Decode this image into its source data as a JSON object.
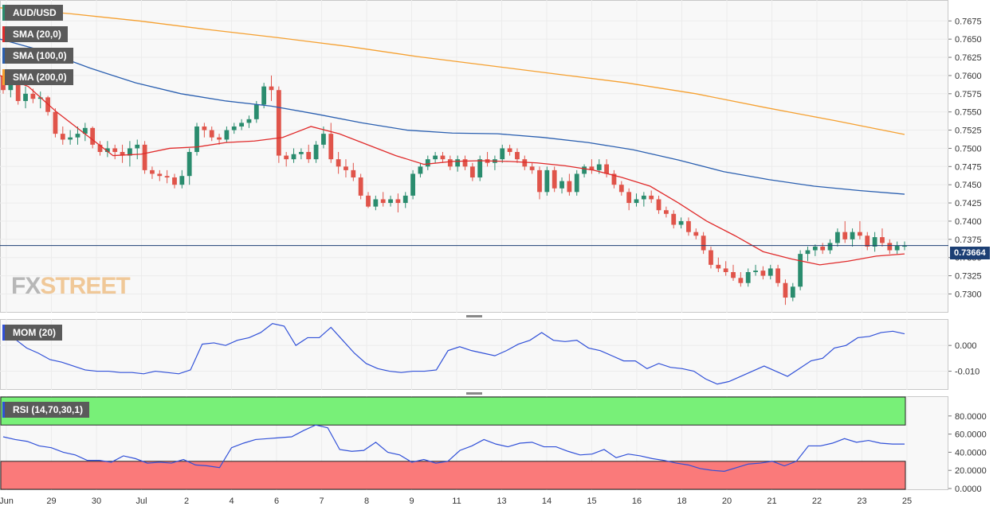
{
  "symbol": "AUD/USD",
  "indicators": {
    "sma20": "SMA (20,0)",
    "sma100": "SMA (100,0)",
    "sma200": "SMA (200,0)",
    "mom": "MOM (20)",
    "rsi": "RSI (14,70,30,1)"
  },
  "current_price": "0.73664",
  "logo": {
    "fx": "FX",
    "street": "STREET"
  },
  "colors": {
    "up": "#2a8c6e",
    "down": "#e0544a",
    "sma20": "#e02a2a",
    "sma100": "#2a5fb0",
    "sma200": "#f5a030",
    "mom": "#3050d8",
    "rsi": "#3050d8",
    "overbought": "#78f078",
    "oversold": "#fa7a7a",
    "price_line": "#1c3f74"
  },
  "chart_data": [
    {
      "type": "candlestick",
      "title": "AUD/USD",
      "timeframe": "4h (approx.)",
      "x_tick_labels": [
        "Jun",
        "29",
        "30",
        "Jul",
        "2",
        "4",
        "6",
        "7",
        "8",
        "9",
        "11",
        "13",
        "14",
        "15",
        "16",
        "18",
        "20",
        "21",
        "22",
        "23",
        "25"
      ],
      "y_tick_labels": [
        "0.7300",
        "0.7325",
        "0.7350",
        "0.7375",
        "0.7400",
        "0.7425",
        "0.7450",
        "0.7475",
        "0.7500",
        "0.7525",
        "0.7550",
        "0.7575",
        "0.7600",
        "0.7625",
        "0.7650",
        "0.7675"
      ],
      "ylim": [
        0.7283,
        0.7695
      ],
      "candles": [
        [
          0.76,
          0.7603,
          0.7575,
          0.758
        ],
        [
          0.758,
          0.7598,
          0.757,
          0.7595
        ],
        [
          0.7595,
          0.76,
          0.756,
          0.7565
        ],
        [
          0.7565,
          0.7585,
          0.7555,
          0.7575
        ],
        [
          0.7575,
          0.7582,
          0.7562,
          0.7568
        ],
        [
          0.7568,
          0.7578,
          0.7555,
          0.757
        ],
        [
          0.757,
          0.7572,
          0.7545,
          0.755
        ],
        [
          0.755,
          0.7555,
          0.7515,
          0.752
        ],
        [
          0.752,
          0.753,
          0.7505,
          0.7512
        ],
        [
          0.7512,
          0.7525,
          0.7505,
          0.7515
        ],
        [
          0.7515,
          0.753,
          0.7505,
          0.752
        ],
        [
          0.752,
          0.7535,
          0.751,
          0.7528
        ],
        [
          0.7528,
          0.753,
          0.75,
          0.7505
        ],
        [
          0.7505,
          0.751,
          0.749,
          0.7495
        ],
        [
          0.7495,
          0.751,
          0.7488,
          0.75
        ],
        [
          0.75,
          0.7505,
          0.7485,
          0.7495
        ],
        [
          0.7495,
          0.7505,
          0.748,
          0.749
        ],
        [
          0.749,
          0.751,
          0.7475,
          0.75
        ],
        [
          0.75,
          0.7512,
          0.7485,
          0.7505
        ],
        [
          0.7505,
          0.751,
          0.7465,
          0.747
        ],
        [
          0.747,
          0.7475,
          0.7458,
          0.7465
        ],
        [
          0.7465,
          0.747,
          0.7455,
          0.7462
        ],
        [
          0.7462,
          0.747,
          0.7452,
          0.746
        ],
        [
          0.746,
          0.7465,
          0.7445,
          0.745
        ],
        [
          0.745,
          0.747,
          0.7445,
          0.7462
        ],
        [
          0.7462,
          0.75,
          0.745,
          0.7495
        ],
        [
          0.7495,
          0.7535,
          0.749,
          0.753
        ],
        [
          0.753,
          0.7535,
          0.7515,
          0.7525
        ],
        [
          0.7525,
          0.753,
          0.751,
          0.7515
        ],
        [
          0.7515,
          0.752,
          0.7505,
          0.7512
        ],
        [
          0.7512,
          0.753,
          0.7508,
          0.7525
        ],
        [
          0.7525,
          0.7535,
          0.752,
          0.753
        ],
        [
          0.753,
          0.754,
          0.7525,
          0.7535
        ],
        [
          0.7535,
          0.7545,
          0.7528,
          0.754
        ],
        [
          0.754,
          0.7565,
          0.7535,
          0.756
        ],
        [
          0.756,
          0.759,
          0.7555,
          0.7585
        ],
        [
          0.7585,
          0.76,
          0.7565,
          0.758
        ],
        [
          0.758,
          0.7585,
          0.748,
          0.749
        ],
        [
          0.749,
          0.7495,
          0.7475,
          0.7485
        ],
        [
          0.7485,
          0.75,
          0.748,
          0.7492
        ],
        [
          0.7492,
          0.75,
          0.7485,
          0.7495
        ],
        [
          0.7495,
          0.7505,
          0.748,
          0.7485
        ],
        [
          0.7485,
          0.751,
          0.748,
          0.7505
        ],
        [
          0.7505,
          0.753,
          0.75,
          0.752
        ],
        [
          0.752,
          0.7535,
          0.748,
          0.7485
        ],
        [
          0.7485,
          0.7495,
          0.7465,
          0.7475
        ],
        [
          0.7475,
          0.7485,
          0.746,
          0.747
        ],
        [
          0.747,
          0.748,
          0.7455,
          0.746
        ],
        [
          0.746,
          0.7465,
          0.743,
          0.7435
        ],
        [
          0.7435,
          0.744,
          0.7418,
          0.742
        ],
        [
          0.742,
          0.7435,
          0.7415,
          0.743
        ],
        [
          0.743,
          0.744,
          0.742,
          0.7425
        ],
        [
          0.7425,
          0.7435,
          0.742,
          0.743
        ],
        [
          0.743,
          0.7438,
          0.7412,
          0.7425
        ],
        [
          0.7425,
          0.744,
          0.7418,
          0.7435
        ],
        [
          0.7435,
          0.747,
          0.743,
          0.7465
        ],
        [
          0.7465,
          0.748,
          0.746,
          0.7475
        ],
        [
          0.7475,
          0.749,
          0.747,
          0.7485
        ],
        [
          0.7485,
          0.7495,
          0.748,
          0.749
        ],
        [
          0.749,
          0.7495,
          0.748,
          0.7485
        ],
        [
          0.7485,
          0.749,
          0.747,
          0.7475
        ],
        [
          0.7475,
          0.749,
          0.7468,
          0.7485
        ],
        [
          0.7485,
          0.749,
          0.747,
          0.7475
        ],
        [
          0.7475,
          0.748,
          0.7455,
          0.746
        ],
        [
          0.746,
          0.749,
          0.7455,
          0.7485
        ],
        [
          0.7485,
          0.7495,
          0.7475,
          0.748
        ],
        [
          0.748,
          0.749,
          0.747,
          0.7485
        ],
        [
          0.7485,
          0.7505,
          0.748,
          0.75
        ],
        [
          0.75,
          0.7505,
          0.749,
          0.7495
        ],
        [
          0.7495,
          0.75,
          0.748,
          0.7485
        ],
        [
          0.7485,
          0.749,
          0.747,
          0.7475
        ],
        [
          0.7475,
          0.748,
          0.7465,
          0.747
        ],
        [
          0.747,
          0.7475,
          0.743,
          0.744
        ],
        [
          0.744,
          0.7475,
          0.7435,
          0.747
        ],
        [
          0.747,
          0.7475,
          0.744,
          0.7445
        ],
        [
          0.7445,
          0.746,
          0.7438,
          0.7455
        ],
        [
          0.7455,
          0.7465,
          0.7435,
          0.744
        ],
        [
          0.744,
          0.747,
          0.7435,
          0.7465
        ],
        [
          0.7465,
          0.7478,
          0.746,
          0.7475
        ],
        [
          0.7475,
          0.7485,
          0.7465,
          0.747
        ],
        [
          0.747,
          0.7485,
          0.7465,
          0.7478
        ],
        [
          0.7478,
          0.7485,
          0.746,
          0.7465
        ],
        [
          0.7465,
          0.747,
          0.7445,
          0.745
        ],
        [
          0.745,
          0.7455,
          0.7435,
          0.744
        ],
        [
          0.744,
          0.7445,
          0.7415,
          0.7425
        ],
        [
          0.7425,
          0.7438,
          0.742,
          0.743
        ],
        [
          0.743,
          0.744,
          0.742,
          0.7435
        ],
        [
          0.7435,
          0.7442,
          0.7425,
          0.743
        ],
        [
          0.743,
          0.7435,
          0.741,
          0.7415
        ],
        [
          0.7415,
          0.742,
          0.7405,
          0.741
        ],
        [
          0.741,
          0.7415,
          0.739,
          0.7395
        ],
        [
          0.7395,
          0.7405,
          0.739,
          0.74
        ],
        [
          0.74,
          0.7405,
          0.738,
          0.7385
        ],
        [
          0.7385,
          0.739,
          0.7375,
          0.738
        ],
        [
          0.738,
          0.7385,
          0.7355,
          0.736
        ],
        [
          0.736,
          0.7365,
          0.7335,
          0.734
        ],
        [
          0.734,
          0.735,
          0.733,
          0.7335
        ],
        [
          0.7335,
          0.7345,
          0.7325,
          0.733
        ],
        [
          0.733,
          0.734,
          0.7318,
          0.7322
        ],
        [
          0.7322,
          0.733,
          0.731,
          0.7315
        ],
        [
          0.7315,
          0.7335,
          0.731,
          0.733
        ],
        [
          0.733,
          0.734,
          0.7325,
          0.7332
        ],
        [
          0.7332,
          0.7338,
          0.732,
          0.7325
        ],
        [
          0.7325,
          0.734,
          0.732,
          0.7335
        ],
        [
          0.7335,
          0.734,
          0.731,
          0.7315
        ],
        [
          0.7315,
          0.732,
          0.7285,
          0.7295
        ],
        [
          0.7295,
          0.7315,
          0.729,
          0.731
        ],
        [
          0.731,
          0.736,
          0.7305,
          0.7355
        ],
        [
          0.7355,
          0.7365,
          0.7345,
          0.736
        ],
        [
          0.736,
          0.7368,
          0.7352,
          0.7365
        ],
        [
          0.7365,
          0.737,
          0.7355,
          0.736
        ],
        [
          0.736,
          0.7375,
          0.7355,
          0.737
        ],
        [
          0.737,
          0.739,
          0.7365,
          0.7385
        ],
        [
          0.7385,
          0.74,
          0.737,
          0.7375
        ],
        [
          0.7375,
          0.739,
          0.7365,
          0.7385
        ],
        [
          0.7385,
          0.74,
          0.7375,
          0.738
        ],
        [
          0.738,
          0.7385,
          0.736,
          0.7365
        ],
        [
          0.7365,
          0.7385,
          0.7358,
          0.7378
        ],
        [
          0.7378,
          0.739,
          0.7365,
          0.737
        ],
        [
          0.737,
          0.7375,
          0.7355,
          0.736
        ],
        [
          0.736,
          0.7372,
          0.7355,
          0.7366
        ],
        [
          0.7366,
          0.7372,
          0.736,
          0.7366
        ]
      ],
      "sma20": [
        0.76,
        0.7585,
        0.755,
        0.752,
        0.749,
        0.7492,
        0.75,
        0.7502,
        0.7508,
        0.751,
        0.7515,
        0.753,
        0.752,
        0.7505,
        0.749,
        0.7478,
        0.7482,
        0.7483,
        0.7482,
        0.748,
        0.7476,
        0.747,
        0.746,
        0.7448,
        0.7425,
        0.74,
        0.738,
        0.7358,
        0.7348,
        0.734,
        0.7345,
        0.7352,
        0.7355
      ],
      "sma100": [
        0.765,
        0.7633,
        0.761,
        0.759,
        0.7575,
        0.7565,
        0.7558,
        0.7547,
        0.7535,
        0.7525,
        0.7521,
        0.752,
        0.7515,
        0.7508,
        0.7498,
        0.7484,
        0.7468,
        0.7457,
        0.7448,
        0.7442,
        0.7437
      ],
      "sma200": [
        0.7693,
        0.7685,
        0.7675,
        0.7663,
        0.7652,
        0.764,
        0.7626,
        0.7614,
        0.7602,
        0.759,
        0.7575,
        0.7556,
        0.7538,
        0.7519
      ]
    },
    {
      "type": "line",
      "title": "MOM (20)",
      "y_tick_labels": [
        "0.000",
        "-0.010"
      ],
      "ylim": [
        -0.016,
        0.009
      ],
      "series": [
        {
          "name": "MOM (20)",
          "values": [
            0.0028,
            0.0025,
            -0.001,
            -0.003,
            -0.0055,
            -0.0065,
            -0.008,
            -0.0095,
            -0.01,
            -0.01,
            -0.0105,
            -0.0105,
            -0.011,
            -0.01,
            -0.0105,
            -0.011,
            -0.0095,
            0.0005,
            0.001,
            0.0,
            0.002,
            0.003,
            0.005,
            0.0085,
            0.0075,
            0.0,
            0.003,
            0.003,
            0.007,
            0.002,
            -0.003,
            -0.007,
            -0.009,
            -0.01,
            -0.0105,
            -0.01,
            -0.01,
            -0.0095,
            -0.002,
            -0.0005,
            -0.002,
            -0.003,
            -0.004,
            -0.002,
            0.0005,
            0.002,
            0.005,
            0.002,
            0.0015,
            0.002,
            -0.001,
            -0.002,
            -0.004,
            -0.006,
            -0.006,
            -0.009,
            -0.007,
            -0.0085,
            -0.009,
            -0.01,
            -0.013,
            -0.015,
            -0.014,
            -0.012,
            -0.01,
            -0.008,
            -0.01,
            -0.012,
            -0.009,
            -0.006,
            -0.005,
            -0.001,
            0.0,
            0.003,
            0.0035,
            0.005,
            0.0055,
            0.0045
          ]
        }
      ]
    },
    {
      "type": "line",
      "title": "RSI (14,70,30,1)",
      "y_tick_labels": [
        "80.0000",
        "60.0000",
        "40.0000",
        "20.0000",
        "0.0000"
      ],
      "ylim": [
        0,
        100
      ],
      "overbought": 70,
      "oversold": 30,
      "series": [
        {
          "name": "RSI (14,70,30,1)",
          "values": [
            57,
            54,
            52,
            47,
            45,
            40,
            37,
            31,
            31,
            29,
            36,
            33,
            28,
            29,
            28,
            32,
            26,
            25,
            23,
            45,
            50,
            54,
            55,
            56,
            57,
            64,
            70,
            67,
            43,
            41,
            42,
            51,
            40,
            37,
            29,
            32,
            28,
            30,
            42,
            47,
            54,
            49,
            46,
            50,
            51,
            46,
            46,
            41,
            37,
            38,
            43,
            34,
            38,
            36,
            33,
            31,
            28,
            26,
            22,
            20,
            19,
            23,
            27,
            28,
            30,
            25,
            30,
            47,
            47,
            50,
            55,
            51,
            53,
            50,
            49,
            49
          ]
        }
      ]
    }
  ]
}
